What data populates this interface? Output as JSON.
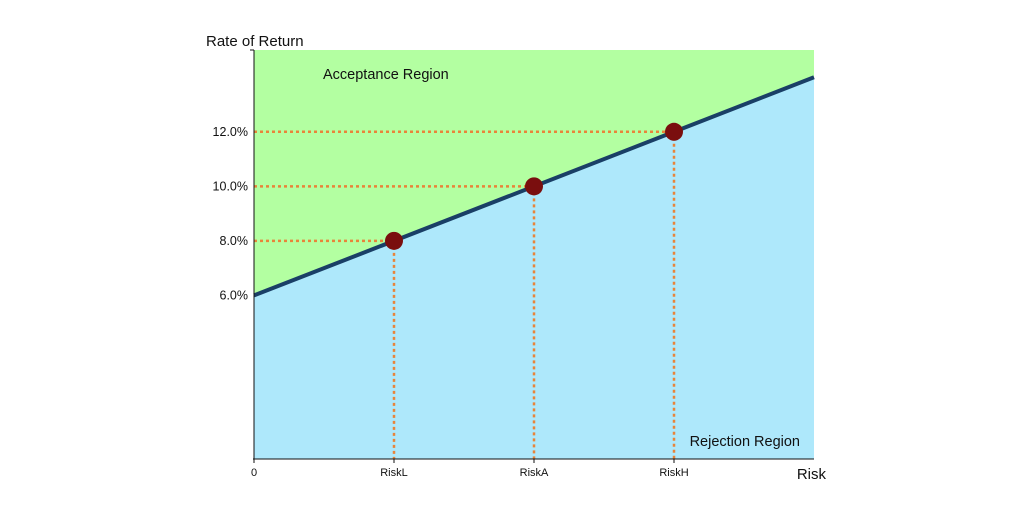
{
  "chart_data": {
    "type": "line",
    "ylabel": "Rate of Return",
    "xlabel": "Risk",
    "x_tick_labels": [
      "0",
      "RiskL",
      "RiskA",
      "RiskH"
    ],
    "x_tick_values": [
      0,
      1,
      2,
      3
    ],
    "xlim": [
      0,
      4
    ],
    "ylim": [
      0,
      15
    ],
    "y_ticks": [
      {
        "value": 6,
        "label": "6.0%"
      },
      {
        "value": 8,
        "label": "8.0%"
      },
      {
        "value": 10,
        "label": "10.0%"
      },
      {
        "value": 12,
        "label": "12.0%"
      }
    ],
    "line": {
      "x": [
        0,
        4
      ],
      "y": [
        6,
        14
      ]
    },
    "points": [
      {
        "x": 1,
        "y": 8
      },
      {
        "x": 2,
        "y": 10
      },
      {
        "x": 3,
        "y": 12
      }
    ],
    "regions": {
      "upper_label": "Acceptance Region",
      "lower_label": "Rejection Region"
    },
    "colors": {
      "acceptance": "#b3ffa1",
      "rejection": "#aee8fb",
      "line": "#1a3f66",
      "point": "#7a0e0e",
      "guide": "#e8843a",
      "axis": "#111111"
    }
  }
}
